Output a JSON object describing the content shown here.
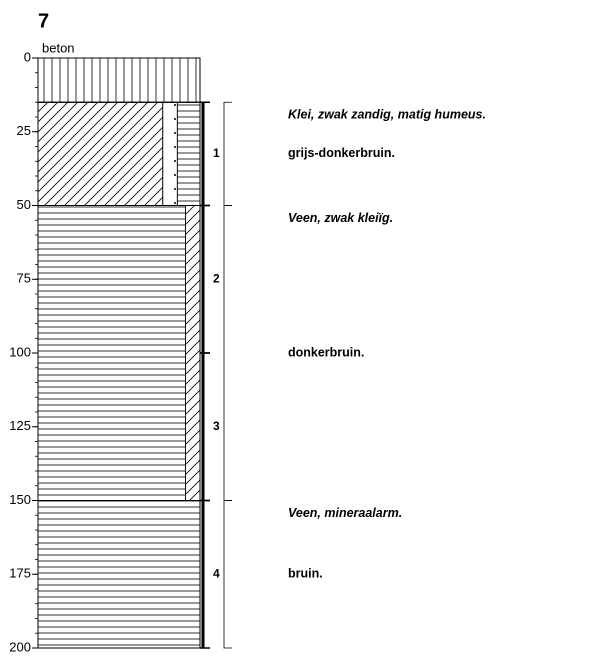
{
  "title": "7",
  "depth_axis": {
    "ylim": [
      0,
      200
    ],
    "ticks": [
      0,
      25,
      50,
      75,
      100,
      125,
      150,
      175,
      200
    ]
  },
  "layers": [
    {
      "top": 0,
      "bottom": 15,
      "pattern": "vertical",
      "label": "beton"
    },
    {
      "top": 15,
      "bottom": 50,
      "pattern": "diagonal-dots-horizontal",
      "description": [
        "Klei, zwak zandig, matig humeus.",
        "grijs-donkerbruin."
      ]
    },
    {
      "top": 50,
      "bottom": 150,
      "pattern": "horizontal-diagonal",
      "description": [
        "Veen, zwak kleiïg.",
        "donkerbruin."
      ]
    },
    {
      "top": 150,
      "bottom": 200,
      "pattern": "horizontal",
      "description": [
        "Veen, mineraalarm.",
        "bruin."
      ]
    }
  ],
  "samples": [
    {
      "label": "1",
      "top": 15,
      "bottom": 50
    },
    {
      "label": "2",
      "top": 50,
      "bottom": 100
    },
    {
      "label": "3",
      "top": 100,
      "bottom": 150
    },
    {
      "label": "4",
      "top": 150,
      "bottom": 200
    }
  ]
}
